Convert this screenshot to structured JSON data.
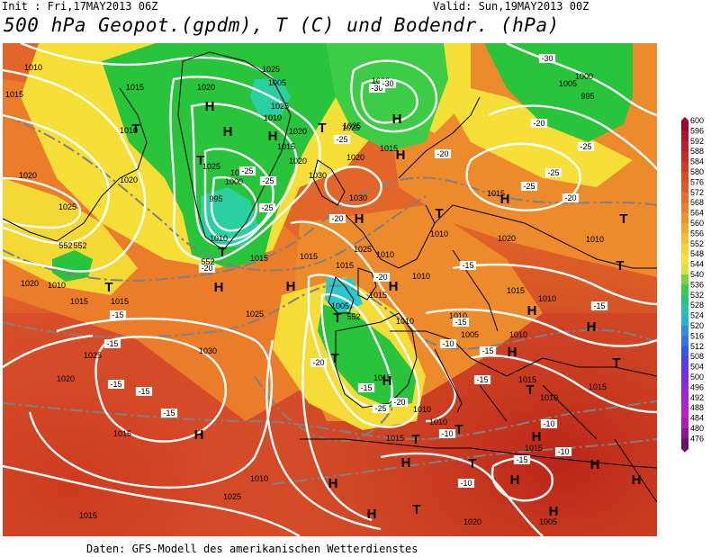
{
  "header": {
    "init": "Init : Fri,17MAY2013 06Z",
    "valid": "Valid: Sun,19MAY2013 00Z",
    "title": "500 hPa Geopot.(gpdm), T (C) und Bodendr. (hPa)"
  },
  "footer": "Daten: GFS-Modell des amerikanischen Wetterdienstes",
  "colors": {
    "ocean_warm": "#d8502a",
    "deep_red": "#c12a1a",
    "orange": "#e88a2e",
    "yellow": "#f5e03a",
    "green": "#23c23a",
    "cyan": "#2ac8d0",
    "isobar": "#ffffff",
    "isotherm": "#808080",
    "coast": "#000000"
  },
  "scale": {
    "values": [
      "600",
      "596",
      "592",
      "588",
      "584",
      "580",
      "576",
      "572",
      "568",
      "564",
      "560",
      "556",
      "552",
      "548",
      "544",
      "540",
      "536",
      "532",
      "528",
      "524",
      "520",
      "516",
      "512",
      "508",
      "504",
      "500",
      "496",
      "492",
      "488",
      "484",
      "480",
      "476"
    ],
    "colors": [
      "#a0002a",
      "#b51030",
      "#c21c28",
      "#cc2a22",
      "#d6391f",
      "#de4a1e",
      "#e25a20",
      "#e86c22",
      "#ee7e24",
      "#f29228",
      "#f6a82c",
      "#f8be30",
      "#fad234",
      "#f6e236",
      "#d8e23a",
      "#7ad23e",
      "#3ccc46",
      "#28c47a",
      "#26c0b0",
      "#26b0d2",
      "#2c8ee0",
      "#3472e8",
      "#3856ee",
      "#4e3ef0",
      "#6a30ec",
      "#8428e6",
      "#9c22de",
      "#b01ed4",
      "#c01cc8",
      "#ae1ab8",
      "#8c1696",
      "#6a1072"
    ]
  },
  "pressure_labels": [
    {
      "t": "1010"
    },
    {
      "t": "1015"
    },
    {
      "t": "1010"
    },
    {
      "t": "1020"
    },
    {
      "t": "1025"
    },
    {
      "t": "1015"
    },
    {
      "t": "1020"
    },
    {
      "t": "1025"
    },
    {
      "t": "1020"
    },
    {
      "t": "1015"
    },
    {
      "t": "1010"
    },
    {
      "t": "1005"
    },
    {
      "t": "1025"
    },
    {
      "t": "1020"
    },
    {
      "t": "995"
    },
    {
      "t": "1000"
    },
    {
      "t": "1005"
    },
    {
      "t": "1010"
    },
    {
      "t": "1015"
    },
    {
      "t": "1010"
    },
    {
      "t": "1015"
    },
    {
      "t": "1020"
    },
    {
      "t": "1025"
    },
    {
      "t": "1030"
    },
    {
      "t": "1015"
    },
    {
      "t": "1020"
    },
    {
      "t": "1020"
    },
    {
      "t": "1025"
    },
    {
      "t": "1020"
    },
    {
      "t": "1015"
    },
    {
      "t": "1010"
    },
    {
      "t": "1005"
    },
    {
      "t": "1030"
    },
    {
      "t": "1020"
    },
    {
      "t": "1025"
    },
    {
      "t": "1010"
    },
    {
      "t": "1015"
    },
    {
      "t": "1010"
    },
    {
      "t": "1015"
    },
    {
      "t": "1025"
    },
    {
      "t": "1030"
    },
    {
      "t": "1025"
    },
    {
      "t": "1020"
    },
    {
      "t": "1015"
    },
    {
      "t": "1010"
    },
    {
      "t": "1015"
    },
    {
      "t": "1015"
    },
    {
      "t": "1005"
    },
    {
      "t": "1010"
    },
    {
      "t": "1010"
    },
    {
      "t": "1015"
    },
    {
      "t": "1010"
    },
    {
      "t": "1010"
    },
    {
      "t": "1005"
    },
    {
      "t": "1010"
    },
    {
      "t": "1015"
    },
    {
      "t": "1010"
    },
    {
      "t": "1015"
    },
    {
      "t": "1015"
    },
    {
      "t": "1005"
    },
    {
      "t": "1010"
    },
    {
      "t": "1025"
    },
    {
      "t": "1015"
    },
    {
      "t": "1020"
    },
    {
      "t": "1000"
    },
    {
      "t": "995"
    },
    {
      "t": "1010"
    },
    {
      "t": "1025"
    },
    {
      "t": "1015"
    },
    {
      "t": "1015"
    }
  ],
  "temp_labels": [
    {
      "t": "-30"
    },
    {
      "t": "-30"
    },
    {
      "t": "-25"
    },
    {
      "t": "-25"
    },
    {
      "t": "-25"
    },
    {
      "t": "-25"
    },
    {
      "t": "-20"
    },
    {
      "t": "-20"
    },
    {
      "t": "-20"
    },
    {
      "t": "-20"
    },
    {
      "t": "-15"
    },
    {
      "t": "-15"
    },
    {
      "t": "-15"
    },
    {
      "t": "-15"
    },
    {
      "t": "-15"
    },
    {
      "t": "-15"
    },
    {
      "t": "-10"
    },
    {
      "t": "-10"
    },
    {
      "t": "-10"
    },
    {
      "t": "-10"
    },
    {
      "t": "-15"
    },
    {
      "t": "-20"
    },
    {
      "t": "-25"
    },
    {
      "t": "-20"
    },
    {
      "t": "-15"
    },
    {
      "t": "-15"
    },
    {
      "t": "-15"
    },
    {
      "t": "-30"
    },
    {
      "t": "-25"
    },
    {
      "t": "-25"
    },
    {
      "t": "-25"
    },
    {
      "t": "-20"
    },
    {
      "t": "-15"
    },
    {
      "t": "-15"
    },
    {
      "t": "-20"
    },
    {
      "t": "-10"
    }
  ],
  "geopot_labels": [
    {
      "t": "552"
    },
    {
      "t": "552"
    },
    {
      "t": "552"
    },
    {
      "t": "552"
    }
  ],
  "centers": [
    {
      "t": "H"
    },
    {
      "t": "H"
    },
    {
      "t": "H"
    },
    {
      "t": "T"
    },
    {
      "t": "T"
    },
    {
      "t": "H"
    },
    {
      "t": "H"
    },
    {
      "t": "T"
    },
    {
      "t": "H"
    },
    {
      "t": "T"
    },
    {
      "t": "T"
    },
    {
      "t": "T"
    },
    {
      "t": "H"
    },
    {
      "t": "H"
    },
    {
      "t": "T"
    },
    {
      "t": "H"
    },
    {
      "t": "T"
    },
    {
      "t": "H"
    },
    {
      "t": "H"
    },
    {
      "t": "H"
    },
    {
      "t": "T"
    },
    {
      "t": "H"
    },
    {
      "t": "H"
    },
    {
      "t": "H"
    },
    {
      "t": "T"
    },
    {
      "t": "H"
    },
    {
      "t": "T"
    },
    {
      "t": "H"
    },
    {
      "t": "T"
    },
    {
      "t": "H"
    },
    {
      "t": "H"
    },
    {
      "t": "H"
    },
    {
      "t": "T"
    },
    {
      "t": "T"
    },
    {
      "t": "T"
    },
    {
      "t": "H"
    },
    {
      "t": "H"
    },
    {
      "t": "T"
    },
    {
      "t": "H"
    },
    {
      "t": "T"
    }
  ]
}
